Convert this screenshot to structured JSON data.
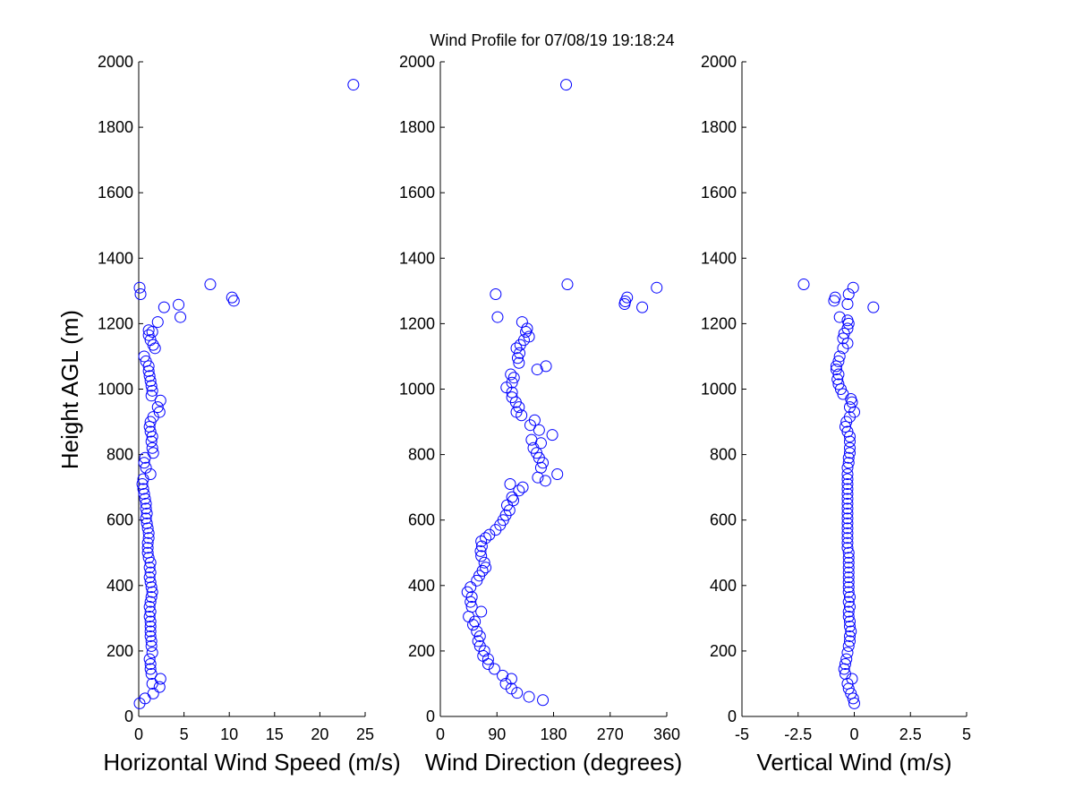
{
  "title": "Wind Profile for  07/08/19 19:18:24",
  "ylabel": "Height AGL (m)",
  "chart_data": [
    {
      "type": "scatter",
      "xlabel": "Horizontal Wind Speed (m/s)",
      "xlim": [
        0,
        25
      ],
      "xticks": [
        "0",
        "5",
        "10",
        "15",
        "20",
        "25"
      ],
      "ylim": [
        0,
        2000
      ],
      "yticks": [
        "0",
        "200",
        "400",
        "600",
        "800",
        "1000",
        "1200",
        "1400",
        "1600",
        "1800",
        "2000"
      ],
      "marker_color": "#0000ff",
      "points": [
        [
          0.1,
          40
        ],
        [
          0.7,
          55
        ],
        [
          1.6,
          70
        ],
        [
          2.3,
          90
        ],
        [
          1.5,
          100
        ],
        [
          2.4,
          115
        ],
        [
          1.4,
          130
        ],
        [
          1.3,
          145
        ],
        [
          1.3,
          160
        ],
        [
          1.2,
          175
        ],
        [
          1.5,
          195
        ],
        [
          1.4,
          215
        ],
        [
          1.4,
          230
        ],
        [
          1.3,
          245
        ],
        [
          1.3,
          260
        ],
        [
          1.3,
          275
        ],
        [
          1.3,
          290
        ],
        [
          1.2,
          305
        ],
        [
          1.3,
          320
        ],
        [
          1.2,
          335
        ],
        [
          1.3,
          350
        ],
        [
          1.4,
          365
        ],
        [
          1.5,
          380
        ],
        [
          1.4,
          395
        ],
        [
          1.3,
          410
        ],
        [
          1.2,
          425
        ],
        [
          1.3,
          440
        ],
        [
          1.2,
          455
        ],
        [
          1.3,
          470
        ],
        [
          1.1,
          485
        ],
        [
          1.0,
          500
        ],
        [
          1.0,
          515
        ],
        [
          1.0,
          530
        ],
        [
          1.1,
          545
        ],
        [
          1.1,
          560
        ],
        [
          1.0,
          575
        ],
        [
          0.9,
          590
        ],
        [
          0.8,
          605
        ],
        [
          0.9,
          620
        ],
        [
          0.8,
          635
        ],
        [
          0.8,
          650
        ],
        [
          0.7,
          665
        ],
        [
          0.6,
          680
        ],
        [
          0.5,
          695
        ],
        [
          0.4,
          710
        ],
        [
          0.5,
          725
        ],
        [
          1.3,
          740
        ],
        [
          0.8,
          760
        ],
        [
          0.6,
          775
        ],
        [
          0.7,
          790
        ],
        [
          1.6,
          805
        ],
        [
          1.5,
          820
        ],
        [
          1.4,
          840
        ],
        [
          1.5,
          855
        ],
        [
          1.3,
          870
        ],
        [
          1.2,
          885
        ],
        [
          1.3,
          900
        ],
        [
          1.6,
          915
        ],
        [
          2.3,
          930
        ],
        [
          2.1,
          945
        ],
        [
          2.4,
          965
        ],
        [
          1.4,
          980
        ],
        [
          1.5,
          995
        ],
        [
          1.4,
          1010
        ],
        [
          1.3,
          1025
        ],
        [
          1.2,
          1040
        ],
        [
          1.1,
          1055
        ],
        [
          1.1,
          1070
        ],
        [
          0.8,
          1085
        ],
        [
          0.6,
          1100
        ],
        [
          1.8,
          1125
        ],
        [
          1.6,
          1135
        ],
        [
          1.3,
          1150
        ],
        [
          1.1,
          1165
        ],
        [
          1.5,
          1175
        ],
        [
          1.1,
          1180
        ],
        [
          2.1,
          1205
        ],
        [
          4.6,
          1220
        ],
        [
          2.8,
          1250
        ],
        [
          4.4,
          1258
        ],
        [
          10.5,
          1270
        ],
        [
          10.3,
          1280
        ],
        [
          0.2,
          1290
        ],
        [
          0.1,
          1310
        ],
        [
          7.9,
          1320
        ],
        [
          23.7,
          1930
        ]
      ]
    },
    {
      "type": "scatter",
      "xlabel": "Wind Direction (degrees)",
      "xlim": [
        0,
        360
      ],
      "xticks": [
        "0",
        "90",
        "180",
        "270",
        "360"
      ],
      "ylim": [
        0,
        2000
      ],
      "yticks": [
        "0",
        "200",
        "400",
        "600",
        "800",
        "1000",
        "1200",
        "1400",
        "1600",
        "1800",
        "2000"
      ],
      "marker_color": "#0000ff",
      "points": [
        [
          163,
          50
        ],
        [
          141,
          60
        ],
        [
          122,
          72
        ],
        [
          113,
          85
        ],
        [
          104,
          100
        ],
        [
          113,
          115
        ],
        [
          99,
          125
        ],
        [
          86,
          145
        ],
        [
          76,
          160
        ],
        [
          76,
          175
        ],
        [
          68,
          185
        ],
        [
          70,
          200
        ],
        [
          63,
          215
        ],
        [
          60,
          230
        ],
        [
          63,
          245
        ],
        [
          58,
          260
        ],
        [
          52,
          280
        ],
        [
          55,
          290
        ],
        [
          45,
          305
        ],
        [
          65,
          320
        ],
        [
          50,
          335
        ],
        [
          48,
          350
        ],
        [
          50,
          365
        ],
        [
          43,
          380
        ],
        [
          48,
          395
        ],
        [
          58,
          415
        ],
        [
          62,
          430
        ],
        [
          67,
          445
        ],
        [
          72,
          455
        ],
        [
          70,
          470
        ],
        [
          65,
          490
        ],
        [
          64,
          505
        ],
        [
          66,
          520
        ],
        [
          65,
          535
        ],
        [
          72,
          545
        ],
        [
          78,
          555
        ],
        [
          88,
          570
        ],
        [
          95,
          585
        ],
        [
          100,
          600
        ],
        [
          104,
          615
        ],
        [
          110,
          630
        ],
        [
          106,
          645
        ],
        [
          116,
          660
        ],
        [
          114,
          670
        ],
        [
          125,
          690
        ],
        [
          131,
          700
        ],
        [
          111,
          710
        ],
        [
          186,
          740
        ],
        [
          155,
          730
        ],
        [
          167,
          720
        ],
        [
          160,
          760
        ],
        [
          163,
          775
        ],
        [
          157,
          790
        ],
        [
          153,
          805
        ],
        [
          148,
          820
        ],
        [
          160,
          835
        ],
        [
          145,
          845
        ],
        [
          178,
          860
        ],
        [
          157,
          875
        ],
        [
          143,
          890
        ],
        [
          150,
          905
        ],
        [
          129,
          920
        ],
        [
          121,
          930
        ],
        [
          125,
          945
        ],
        [
          120,
          960
        ],
        [
          114,
          975
        ],
        [
          114,
          990
        ],
        [
          105,
          1005
        ],
        [
          114,
          1020
        ],
        [
          117,
          1035
        ],
        [
          112,
          1045
        ],
        [
          154,
          1060
        ],
        [
          168,
          1070
        ],
        [
          125,
          1080
        ],
        [
          123,
          1095
        ],
        [
          126,
          1110
        ],
        [
          121,
          1125
        ],
        [
          127,
          1135
        ],
        [
          133,
          1150
        ],
        [
          141,
          1160
        ],
        [
          136,
          1175
        ],
        [
          138,
          1185
        ],
        [
          130,
          1205
        ],
        [
          91,
          1220
        ],
        [
          321,
          1250
        ],
        [
          293,
          1260
        ],
        [
          294,
          1268
        ],
        [
          297,
          1280
        ],
        [
          88,
          1290
        ],
        [
          344,
          1310
        ],
        [
          202,
          1320
        ],
        [
          200,
          1930
        ]
      ]
    },
    {
      "type": "scatter",
      "xlabel": "Vertical Wind (m/s)",
      "xlim": [
        -5,
        5
      ],
      "xticks": [
        "-5",
        "-2.5",
        "0",
        "2.5",
        "5"
      ],
      "ylim": [
        0,
        2000
      ],
      "yticks": [
        "0",
        "200",
        "400",
        "600",
        "800",
        "1000",
        "1200",
        "1400",
        "1600",
        "1800",
        "2000"
      ],
      "marker_color": "#0000ff",
      "points": [
        [
          0.0,
          40
        ],
        [
          -0.05,
          55
        ],
        [
          -0.15,
          70
        ],
        [
          -0.25,
          85
        ],
        [
          -0.3,
          100
        ],
        [
          -0.1,
          115
        ],
        [
          -0.4,
          130
        ],
        [
          -0.45,
          145
        ],
        [
          -0.4,
          160
        ],
        [
          -0.35,
          175
        ],
        [
          -0.3,
          195
        ],
        [
          -0.25,
          215
        ],
        [
          -0.2,
          230
        ],
        [
          -0.2,
          245
        ],
        [
          -0.15,
          260
        ],
        [
          -0.2,
          275
        ],
        [
          -0.2,
          290
        ],
        [
          -0.25,
          305
        ],
        [
          -0.25,
          320
        ],
        [
          -0.2,
          335
        ],
        [
          -0.25,
          350
        ],
        [
          -0.2,
          365
        ],
        [
          -0.25,
          380
        ],
        [
          -0.25,
          395
        ],
        [
          -0.25,
          410
        ],
        [
          -0.25,
          425
        ],
        [
          -0.25,
          440
        ],
        [
          -0.25,
          455
        ],
        [
          -0.25,
          470
        ],
        [
          -0.25,
          485
        ],
        [
          -0.25,
          500
        ],
        [
          -0.3,
          515
        ],
        [
          -0.3,
          530
        ],
        [
          -0.3,
          545
        ],
        [
          -0.3,
          560
        ],
        [
          -0.3,
          575
        ],
        [
          -0.3,
          590
        ],
        [
          -0.3,
          605
        ],
        [
          -0.3,
          620
        ],
        [
          -0.3,
          635
        ],
        [
          -0.3,
          650
        ],
        [
          -0.3,
          665
        ],
        [
          -0.3,
          680
        ],
        [
          -0.3,
          695
        ],
        [
          -0.3,
          710
        ],
        [
          -0.3,
          725
        ],
        [
          -0.3,
          740
        ],
        [
          -0.3,
          760
        ],
        [
          -0.25,
          775
        ],
        [
          -0.25,
          790
        ],
        [
          -0.2,
          805
        ],
        [
          -0.2,
          820
        ],
        [
          -0.2,
          840
        ],
        [
          -0.2,
          855
        ],
        [
          -0.3,
          870
        ],
        [
          -0.4,
          885
        ],
        [
          -0.35,
          900
        ],
        [
          -0.2,
          915
        ],
        [
          0.0,
          930
        ],
        [
          -0.2,
          945
        ],
        [
          -0.1,
          960
        ],
        [
          -0.15,
          970
        ],
        [
          -0.5,
          985
        ],
        [
          -0.6,
          1000
        ],
        [
          -0.7,
          1015
        ],
        [
          -0.75,
          1030
        ],
        [
          -0.7,
          1045
        ],
        [
          -0.8,
          1060
        ],
        [
          -0.8,
          1070
        ],
        [
          -0.7,
          1085
        ],
        [
          -0.65,
          1100
        ],
        [
          -0.5,
          1125
        ],
        [
          -0.3,
          1140
        ],
        [
          -0.5,
          1155
        ],
        [
          -0.45,
          1170
        ],
        [
          -0.3,
          1185
        ],
        [
          -0.25,
          1200
        ],
        [
          -0.3,
          1210
        ],
        [
          -0.65,
          1220
        ],
        [
          0.85,
          1250
        ],
        [
          -0.3,
          1260
        ],
        [
          -0.9,
          1270
        ],
        [
          -0.85,
          1280
        ],
        [
          -0.25,
          1290
        ],
        [
          -0.05,
          1310
        ],
        [
          -2.25,
          1320
        ]
      ]
    }
  ]
}
